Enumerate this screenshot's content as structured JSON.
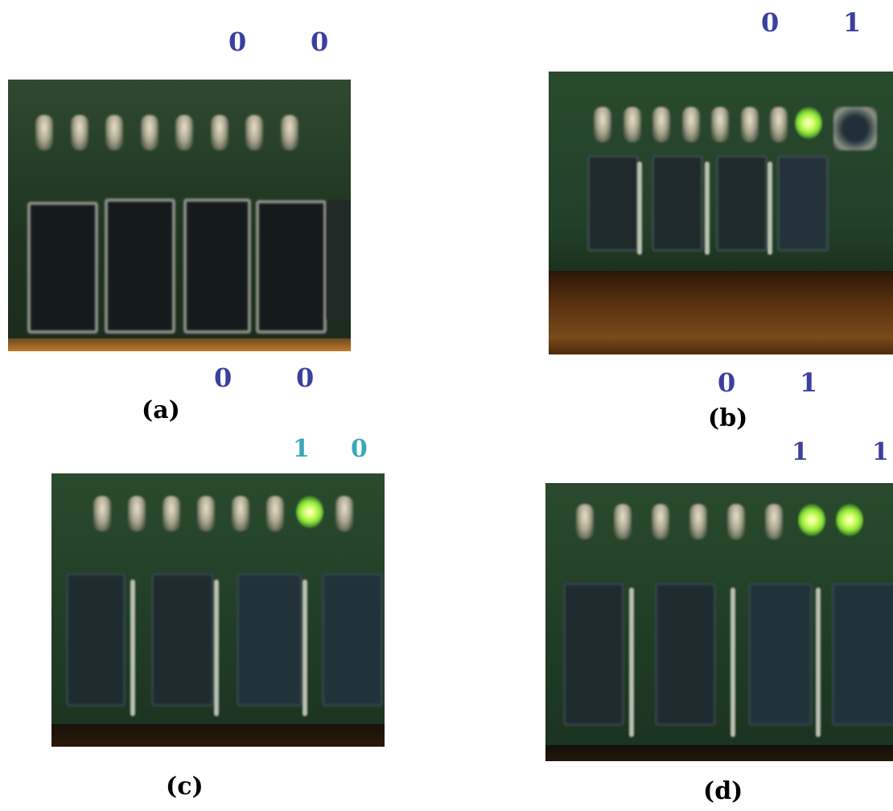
{
  "panels": [
    {
      "caption": "(a)",
      "top_bits": [
        "0",
        "0"
      ],
      "bottom_bits": [
        "0",
        "0"
      ],
      "leds_on": [
        false,
        false,
        false,
        false,
        false,
        false,
        false,
        false
      ],
      "bit_color": "#3b3fa0"
    },
    {
      "caption": "(b)",
      "top_bits": [
        "0",
        "1"
      ],
      "bottom_bits": [
        "0",
        "1"
      ],
      "leds_on": [
        false,
        false,
        false,
        false,
        false,
        false,
        false,
        true
      ],
      "bit_color": "#3b3fa0"
    },
    {
      "caption": "(c)",
      "top_bits": [
        "1",
        "0"
      ],
      "bottom_bits": [],
      "leds_on": [
        false,
        false,
        false,
        false,
        false,
        false,
        true,
        false
      ],
      "bit_color": "#3aa7b8"
    },
    {
      "caption": "(d)",
      "top_bits": [
        "1",
        "1"
      ],
      "bottom_bits": [],
      "leds_on": [
        false,
        false,
        false,
        false,
        false,
        false,
        true,
        true
      ],
      "bit_color": "#3b3fa0"
    }
  ],
  "colors": {
    "board": "#1f3a22",
    "led_on": "#b8ff4a",
    "wood": "#5a3210",
    "switch": "#1d2a2a"
  }
}
